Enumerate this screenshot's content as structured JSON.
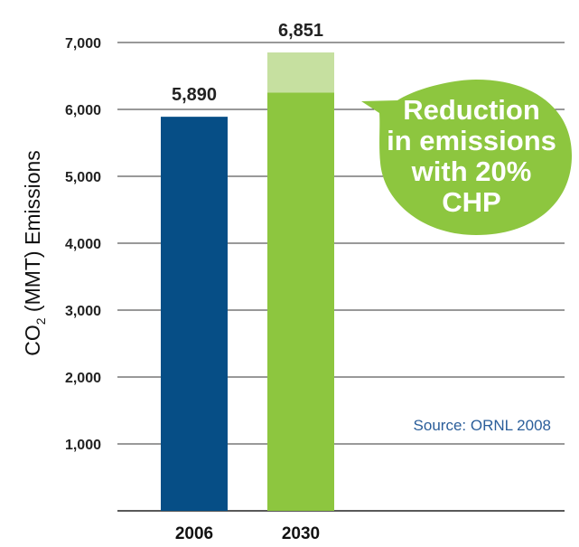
{
  "chart_data": {
    "type": "bar",
    "categories": [
      "2006",
      "2030"
    ],
    "values": [
      5890,
      6851
    ],
    "value_labels": [
      "5,890",
      "6,851"
    ],
    "reduction_segment": {
      "category": "2030",
      "from": 6250,
      "to": 6851
    },
    "ylabel_prefix": "CO",
    "ylabel_sub": "2",
    "ylabel_suffix": " (MMT) Emissions",
    "ylim": [
      0,
      7000
    ],
    "yticks": [
      1000,
      2000,
      3000,
      4000,
      5000,
      6000,
      7000
    ],
    "ytick_labels": [
      "1,000",
      "2,000",
      "3,000",
      "4,000",
      "5,000",
      "6,000",
      "7,000"
    ],
    "grid": true,
    "colors": {
      "bar_2006": "#064e86",
      "bar_2030": "#8dc63f",
      "reduction": "#c6e0a0",
      "bubble": "#8dc63f",
      "source_text": "#2b5e9a"
    },
    "callout": {
      "lines": [
        "Reduction",
        "in emissions",
        "with 20%",
        "CHP"
      ]
    },
    "source": "Source: ORNL 2008"
  }
}
